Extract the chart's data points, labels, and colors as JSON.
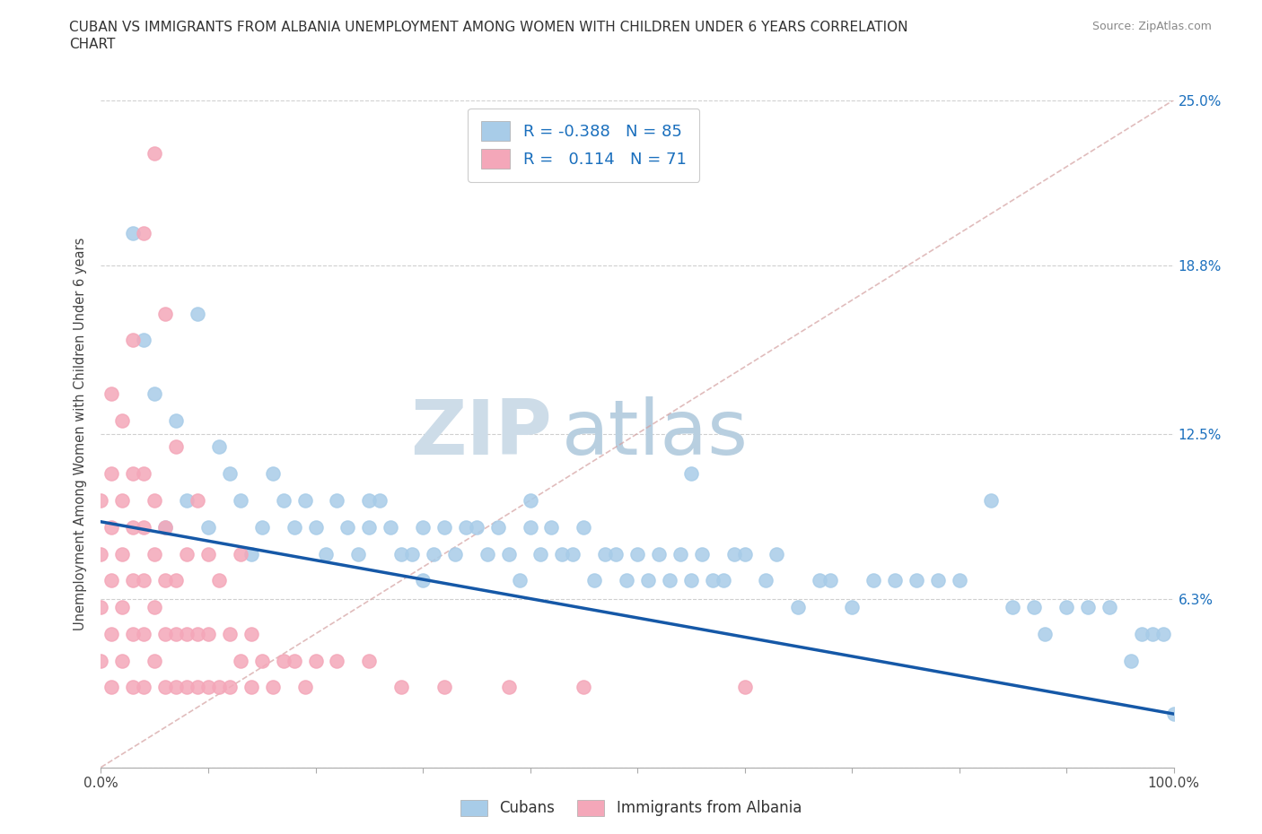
{
  "title_line1": "CUBAN VS IMMIGRANTS FROM ALBANIA UNEMPLOYMENT AMONG WOMEN WITH CHILDREN UNDER 6 YEARS CORRELATION",
  "title_line2": "CHART",
  "source": "Source: ZipAtlas.com",
  "ylabel": "Unemployment Among Women with Children Under 6 years",
  "background_color": "#ffffff",
  "x_min": 0.0,
  "x_max": 100.0,
  "y_min": 0.0,
  "y_max": 25.0,
  "x_ticks": [
    0.0,
    10.0,
    20.0,
    30.0,
    40.0,
    50.0,
    60.0,
    70.0,
    80.0,
    90.0,
    100.0
  ],
  "y_ticks": [
    0.0,
    6.3,
    12.5,
    18.8,
    25.0
  ],
  "y_tick_labels_right": [
    "",
    "6.3%",
    "12.5%",
    "18.8%",
    "25.0%"
  ],
  "cubans_color": "#a8cce8",
  "albania_color": "#f4a7b9",
  "trend_line_color": "#1558a7",
  "reference_line_color": "#d4a0a0",
  "watermark_zip_color": "#cddce8",
  "watermark_atlas_color": "#b8cfe0",
  "legend_R_cubans": "-0.388",
  "legend_N_cubans": "85",
  "legend_R_albania": "0.114",
  "legend_N_albania": "71",
  "cubans_x": [
    3,
    4,
    5,
    6,
    7,
    8,
    9,
    10,
    11,
    12,
    13,
    14,
    15,
    16,
    17,
    18,
    19,
    20,
    21,
    22,
    23,
    24,
    25,
    26,
    27,
    28,
    29,
    30,
    31,
    32,
    33,
    34,
    35,
    36,
    37,
    38,
    39,
    40,
    41,
    42,
    43,
    44,
    45,
    46,
    47,
    48,
    49,
    50,
    51,
    52,
    53,
    54,
    55,
    56,
    57,
    58,
    59,
    60,
    62,
    63,
    65,
    67,
    68,
    70,
    72,
    74,
    76,
    78,
    80,
    83,
    85,
    87,
    88,
    90,
    92,
    94,
    96,
    97,
    98,
    99,
    100,
    55,
    30,
    40,
    25
  ],
  "cubans_y": [
    20,
    16,
    14,
    9,
    13,
    10,
    17,
    9,
    12,
    11,
    10,
    8,
    9,
    11,
    10,
    9,
    10,
    9,
    8,
    10,
    9,
    8,
    9,
    10,
    9,
    8,
    8,
    9,
    8,
    9,
    8,
    9,
    9,
    8,
    9,
    8,
    7,
    10,
    8,
    9,
    8,
    8,
    9,
    7,
    8,
    8,
    7,
    8,
    7,
    8,
    7,
    8,
    7,
    8,
    7,
    7,
    8,
    8,
    7,
    8,
    6,
    7,
    7,
    6,
    7,
    7,
    7,
    7,
    7,
    10,
    6,
    6,
    5,
    6,
    6,
    6,
    4,
    5,
    5,
    5,
    2,
    11,
    7,
    9,
    10
  ],
  "albania_x": [
    0,
    0,
    0,
    0,
    1,
    1,
    1,
    1,
    1,
    1,
    2,
    2,
    2,
    2,
    2,
    3,
    3,
    3,
    3,
    3,
    3,
    4,
    4,
    4,
    4,
    4,
    4,
    5,
    5,
    5,
    5,
    5,
    6,
    6,
    6,
    6,
    6,
    7,
    7,
    7,
    7,
    8,
    8,
    8,
    9,
    9,
    9,
    10,
    10,
    10,
    11,
    11,
    12,
    12,
    13,
    13,
    14,
    14,
    15,
    16,
    17,
    18,
    19,
    20,
    22,
    25,
    28,
    32,
    38,
    45,
    60
  ],
  "albania_y": [
    4,
    6,
    8,
    10,
    3,
    5,
    7,
    9,
    11,
    14,
    4,
    6,
    8,
    10,
    13,
    3,
    5,
    7,
    9,
    11,
    16,
    3,
    5,
    7,
    9,
    11,
    20,
    4,
    6,
    8,
    10,
    23,
    3,
    5,
    7,
    9,
    17,
    3,
    5,
    7,
    12,
    3,
    5,
    8,
    3,
    5,
    10,
    3,
    5,
    8,
    3,
    7,
    3,
    5,
    4,
    8,
    3,
    5,
    4,
    3,
    4,
    4,
    3,
    4,
    4,
    4,
    3,
    3,
    3,
    3,
    3
  ],
  "trend_x0": 0,
  "trend_x1": 100,
  "trend_y0": 9.2,
  "trend_y1": 2.0
}
